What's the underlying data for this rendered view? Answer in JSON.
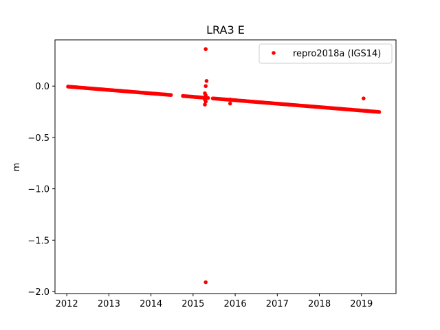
{
  "chart_data": {
    "type": "scatter",
    "title": "LRA3 E",
    "xlabel": "",
    "ylabel": "m",
    "xlim": [
      2011.72,
      2019.82
    ],
    "ylim": [
      -2.02,
      0.45
    ],
    "x_ticks": [
      "2012",
      "2013",
      "2014",
      "2015",
      "2016",
      "2017",
      "2018",
      "2019"
    ],
    "x_tick_values": [
      2012,
      2013,
      2014,
      2015,
      2016,
      2017,
      2018,
      2019
    ],
    "y_ticks": [
      "0.0",
      "−0.5",
      "−1.0",
      "−1.5",
      "−2.0"
    ],
    "y_tick_values": [
      0.0,
      -0.5,
      -1.0,
      -1.5,
      -2.0
    ],
    "grid": false,
    "legend_position": "top-right",
    "series": [
      {
        "name": "repro2018a (IGS14)",
        "color": "#ff0000",
        "trend": {
          "x_start": 2012.03,
          "x_end": 2019.42,
          "y_start": -0.005,
          "y_end": -0.252,
          "gaps": [
            [
              2014.5,
              2014.75
            ],
            [
              2015.38,
              2015.45
            ]
          ]
        },
        "outliers": [
          {
            "x": 2015.3,
            "y": 0.36
          },
          {
            "x": 2015.32,
            "y": 0.05
          },
          {
            "x": 2015.3,
            "y": 0.0
          },
          {
            "x": 2015.28,
            "y": -0.07
          },
          {
            "x": 2015.3,
            "y": -0.09
          },
          {
            "x": 2015.28,
            "y": -0.13
          },
          {
            "x": 2015.3,
            "y": -0.15
          },
          {
            "x": 2015.28,
            "y": -0.18
          },
          {
            "x": 2015.3,
            "y": -1.91
          },
          {
            "x": 2015.88,
            "y": -0.13
          },
          {
            "x": 2015.88,
            "y": -0.17
          },
          {
            "x": 2019.05,
            "y": -0.12
          }
        ]
      }
    ]
  }
}
